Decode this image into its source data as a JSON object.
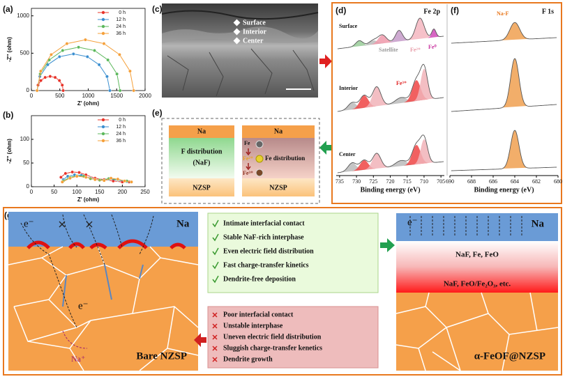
{
  "panel_labels": {
    "a": "(a)",
    "b": "(b)",
    "c": "(c)",
    "d": "(d)",
    "e": "(e)",
    "f": "(f)",
    "g": "(g)"
  },
  "chart_data": [
    {
      "type": "line",
      "xlabel": "Z' (ohm)",
      "ylabel": "-Z'' (ohm)",
      "xlim": [
        0,
        2000
      ],
      "xticks": [
        0,
        500,
        1000,
        1500,
        2000
      ],
      "ylim": [
        0,
        1100
      ],
      "yticks": [
        0,
        500,
        1000
      ],
      "legend": "upper right",
      "series": [
        {
          "name": "0 h",
          "color": "#e8342a",
          "x": [
            100,
            117,
            167,
            242,
            330,
            418,
            493,
            543,
            560
          ],
          "values": [
            0,
            73,
            134,
            176,
            190,
            176,
            134,
            73,
            0
          ]
        },
        {
          "name": "12 h",
          "color": "#3b8fd0",
          "x": [
            100,
            149,
            288,
            495,
            740,
            985,
            1192,
            1331,
            1380
          ],
          "values": [
            0,
            188,
            346,
            453,
            490,
            453,
            346,
            188,
            0
          ]
        },
        {
          "name": "24 h",
          "color": "#5cb85c",
          "x": [
            100,
            155,
            314,
            550,
            830,
            1110,
            1346,
            1505,
            1560
          ],
          "values": [
            0,
            222,
            410,
            536,
            580,
            536,
            410,
            222,
            0
          ]
        },
        {
          "name": "36 h",
          "color": "#f5a03a",
          "x": [
            100,
            165,
            349,
            625,
            950,
            1276,
            1551,
            1735,
            1800
          ],
          "values": [
            0,
            260,
            481,
            628,
            680,
            628,
            481,
            260,
            0
          ]
        }
      ]
    },
    {
      "type": "line",
      "xlabel": "Z' (ohm)",
      "ylabel": "-Z'' (ohm)",
      "xlim": [
        0,
        250
      ],
      "xticks": [
        0,
        50,
        100,
        150,
        200,
        250
      ],
      "ylim": [
        0,
        150
      ],
      "yticks": [
        0,
        50,
        100
      ],
      "legend": "upper right",
      "series": [
        {
          "name": "0 h",
          "color": "#e8342a",
          "x": [
            65,
            75,
            90,
            105,
            120,
            140,
            160,
            180,
            200,
            215
          ],
          "values": [
            20,
            28,
            31,
            30,
            25,
            18,
            15,
            12,
            10,
            10
          ]
        },
        {
          "name": "12 h",
          "color": "#3b8fd0",
          "x": [
            70,
            80,
            95,
            110,
            130,
            150,
            170,
            190,
            210,
            220
          ],
          "values": [
            15,
            22,
            25,
            24,
            18,
            14,
            16,
            14,
            11,
            10
          ]
        },
        {
          "name": "24 h",
          "color": "#5cb85c",
          "x": [
            70,
            85,
            100,
            115,
            130,
            150,
            170,
            190,
            210,
            220
          ],
          "values": [
            12,
            20,
            23,
            22,
            17,
            14,
            17,
            15,
            12,
            10
          ]
        },
        {
          "name": "36 h",
          "color": "#f5a03a",
          "x": [
            68,
            85,
            100,
            120,
            140,
            160,
            175,
            190,
            205,
            220
          ],
          "values": [
            10,
            18,
            22,
            20,
            15,
            13,
            18,
            16,
            12,
            10
          ]
        }
      ]
    },
    {
      "type": "spectrum",
      "title": "Fe 2p",
      "xlabel": "Binding energy (eV)",
      "xlim": [
        736,
        704
      ],
      "xticks": [
        735,
        730,
        725,
        720,
        715,
        710,
        705
      ],
      "annotations": {
        "rows": [
          "Surface",
          "Interior",
          "Center"
        ],
        "satellite": "Satellite",
        "fe2": "Fe²⁺",
        "fe0": "Fe⁰",
        "fe3": "Fe³⁺"
      }
    },
    {
      "type": "spectrum",
      "title": "F 1s",
      "xlabel": "Binding energy (eV)",
      "xlim": [
        690,
        680
      ],
      "xticks": [
        690,
        688,
        686,
        684,
        682,
        680
      ],
      "annotations": {
        "naf": "Na-F"
      }
    }
  ],
  "sem": {
    "labels": [
      "Surface",
      "Interior",
      "Center"
    ]
  },
  "schematic_e": {
    "left": {
      "top": "Na",
      "middle": [
        "F distribution",
        "(NaF)"
      ],
      "bottom": "NZSP"
    },
    "right": {
      "top": "Na",
      "ions": [
        "Fe",
        "Fe²⁺",
        "Fe³⁺"
      ],
      "middle": "Fe distribution",
      "bottom": "NZSP"
    }
  },
  "schematic_g": {
    "bare": {
      "na": "Na",
      "electrons": [
        "e⁻",
        "e⁻"
      ],
      "ion": "Na⁺",
      "label": "Bare NZSP"
    },
    "advantages": [
      "Intimate interfacial contact",
      "Stable NaF-rich interphase",
      "Even electric field distribution",
      "Fast charge-transfer kinetics",
      "Dendrite-free deposition"
    ],
    "problems": [
      "Poor interfacial contact",
      "Unstable interphase",
      "Uneven electric field distribution",
      "Sluggish charge-transfer kenetics",
      "Dendrite growth"
    ],
    "coated": {
      "na": "Na",
      "electron": "e⁻",
      "upper": "NaF, Fe, FeO",
      "lower": "NaF, FeO/Fe₂O₃, etc.",
      "label": "α-FeOF@NZSP"
    }
  }
}
